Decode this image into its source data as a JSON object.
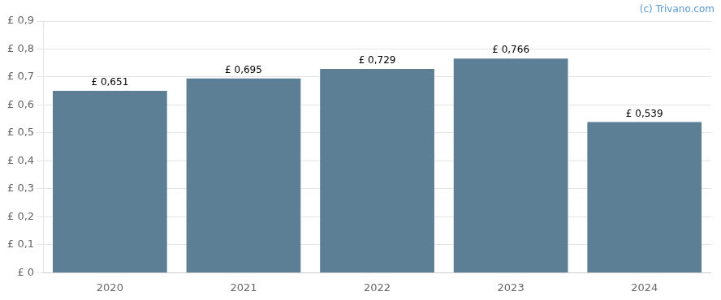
{
  "chart_data": {
    "type": "bar",
    "categories": [
      "2020",
      "2021",
      "2022",
      "2023",
      "2024"
    ],
    "values": [
      0.651,
      0.695,
      0.729,
      0.766,
      0.539
    ],
    "value_labels": [
      "£ 0,651",
      "£ 0,695",
      "£ 0,729",
      "£ 0,766",
      "£ 0,539"
    ],
    "data_labels": true,
    "color": "#5d7f96",
    "ylim": [
      0,
      0.9
    ],
    "yticks": [
      {
        "value": 0,
        "label": "£ 0"
      },
      {
        "value": 0.1,
        "label": "£ 0,1"
      },
      {
        "value": 0.2,
        "label": "£ 0,2"
      },
      {
        "value": 0.3,
        "label": "£ 0,3"
      },
      {
        "value": 0.4,
        "label": "£ 0,4"
      },
      {
        "value": 0.5,
        "label": "£ 0,5"
      },
      {
        "value": 0.6,
        "label": "£ 0,6"
      },
      {
        "value": 0.7,
        "label": "£ 0,7"
      },
      {
        "value": 0.8,
        "label": "£ 0,8"
      },
      {
        "value": 0.9,
        "label": "£ 0,9"
      }
    ],
    "grid": true,
    "annotations": [
      {
        "text": "(c) Trivano.com",
        "color": "#5b9bd5"
      }
    ]
  }
}
